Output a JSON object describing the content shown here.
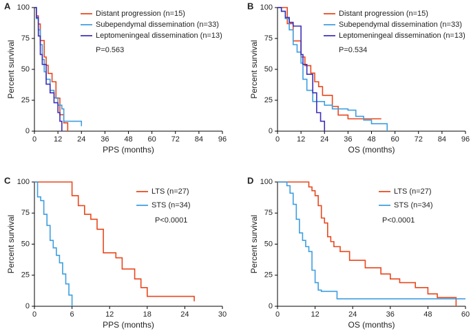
{
  "chart_data": [
    {
      "type": "line",
      "step": true,
      "panel_label": "A",
      "x_label": "PPS (months)",
      "y_label": "Percent survival",
      "annotation": "P=0.563",
      "xlim": [
        0,
        96
      ],
      "xticks": [
        0,
        12,
        24,
        36,
        48,
        60,
        72,
        84,
        96
      ],
      "ylim": [
        0,
        100
      ],
      "yticks": [
        0,
        25,
        50,
        75,
        100
      ],
      "series": [
        {
          "name": "Distant progression (n=15)",
          "color": "#e8461c",
          "x": [
            0,
            1,
            2,
            3,
            5,
            6,
            7,
            9,
            11,
            13,
            15,
            17
          ],
          "values": [
            100,
            93.3,
            86.7,
            73.3,
            60,
            53.3,
            46.7,
            40,
            26.7,
            13.3,
            6.7,
            0
          ]
        },
        {
          "name": "Subependymal dissemination (n=33)",
          "color": "#3d9ee0",
          "x": [
            0,
            1,
            2,
            3,
            4,
            5,
            6,
            8,
            10,
            12,
            14,
            15,
            24
          ],
          "values": [
            100,
            91,
            82,
            70,
            58,
            48,
            42,
            33,
            27,
            21,
            18,
            8,
            4
          ]
        },
        {
          "name": "Leptomeningeal dissemination (n=13)",
          "color": "#3b2fb8",
          "x": [
            0,
            1,
            2,
            3,
            4,
            6,
            8,
            10,
            12,
            13,
            14
          ],
          "values": [
            100,
            92,
            77,
            62,
            54,
            38,
            31,
            23,
            15,
            8,
            0
          ]
        }
      ]
    },
    {
      "type": "line",
      "step": true,
      "panel_label": "B",
      "x_label": "OS (months)",
      "y_label": "Percent survival",
      "annotation": "P=0.534",
      "xlim": [
        0,
        96
      ],
      "xticks": [
        0,
        12,
        24,
        36,
        48,
        60,
        72,
        84,
        96
      ],
      "ylim": [
        0,
        100
      ],
      "yticks": [
        0,
        25,
        50,
        75,
        100
      ],
      "series": [
        {
          "name": "Distant progression (n=15)",
          "color": "#e8461c",
          "x": [
            0,
            5,
            8,
            12,
            14,
            17,
            19,
            21,
            23,
            28,
            31,
            36,
            53
          ],
          "values": [
            100,
            87,
            73,
            60,
            53,
            47,
            40,
            36,
            29,
            20,
            13,
            10,
            10
          ]
        },
        {
          "name": "Subependymal dissemination (n=33)",
          "color": "#3d9ee0",
          "x": [
            0,
            2,
            4,
            6,
            8,
            10,
            12,
            13,
            15,
            18,
            24,
            28,
            36,
            40,
            44,
            48,
            56
          ],
          "values": [
            100,
            97,
            91,
            82,
            70,
            64,
            55,
            42,
            33,
            24,
            21,
            18,
            17,
            12,
            9,
            6,
            0
          ]
        },
        {
          "name": "Leptomeningeal dissemination (n=13)",
          "color": "#3b2fb8",
          "x": [
            0,
            2,
            4,
            6,
            8,
            12,
            13,
            15,
            18,
            20,
            22,
            24
          ],
          "values": [
            100,
            97,
            92,
            88,
            85,
            62,
            54,
            46,
            31,
            15,
            8,
            0
          ]
        }
      ]
    },
    {
      "type": "line",
      "step": true,
      "panel_label": "C",
      "x_label": "PPS (months)",
      "y_label": "Percent survival",
      "annotation": "P<0.0001",
      "xlim": [
        0,
        30
      ],
      "xticks": [
        0,
        6,
        12,
        18,
        24,
        30
      ],
      "ylim": [
        0,
        100
      ],
      "yticks": [
        0,
        25,
        50,
        75,
        100
      ],
      "series": [
        {
          "name": "LTS (n=27)",
          "color": "#e8461c",
          "x": [
            0,
            6,
            7,
            8,
            9,
            10,
            11,
            13,
            14,
            16,
            17,
            18,
            25.5
          ],
          "values": [
            100,
            89,
            81,
            74,
            70,
            62,
            43,
            39,
            30,
            22,
            15,
            8,
            4
          ]
        },
        {
          "name": "STS (n=34)",
          "color": "#3d9ee0",
          "x": [
            0,
            0.5,
            1,
            1.5,
            2,
            2.5,
            3,
            3.5,
            4,
            4.5,
            5,
            5.5,
            6
          ],
          "values": [
            100,
            88,
            85,
            74,
            65,
            53,
            47,
            41,
            35,
            26,
            18,
            9,
            0
          ]
        }
      ]
    },
    {
      "type": "line",
      "step": true,
      "panel_label": "D",
      "x_label": "OS (months)",
      "y_label": "Percent survival",
      "annotation": "P<0.0001",
      "xlim": [
        0,
        60
      ],
      "xticks": [
        0,
        12,
        24,
        36,
        48,
        60
      ],
      "ylim": [
        0,
        100
      ],
      "yticks": [
        0,
        25,
        50,
        75,
        100
      ],
      "series": [
        {
          "name": "LTS (n=27)",
          "color": "#e8461c",
          "x": [
            0,
            10,
            11,
            12,
            13,
            14,
            15,
            16,
            17,
            18,
            20,
            23,
            28,
            33,
            36,
            39,
            44,
            48,
            51,
            57
          ],
          "values": [
            100,
            96,
            93,
            89,
            81,
            71,
            67,
            56,
            52,
            48,
            44,
            37,
            31,
            26,
            22,
            19,
            15,
            10,
            7,
            0
          ]
        },
        {
          "name": "STS (n=34)",
          "color": "#3d9ee0",
          "x": [
            0,
            3,
            4,
            5,
            6,
            7,
            8,
            9,
            10,
            11,
            12,
            13,
            14,
            19,
            24,
            60
          ],
          "values": [
            100,
            97,
            91,
            82,
            70,
            59,
            53,
            48,
            44,
            29,
            19,
            13,
            12,
            6,
            6,
            6
          ]
        }
      ]
    }
  ]
}
